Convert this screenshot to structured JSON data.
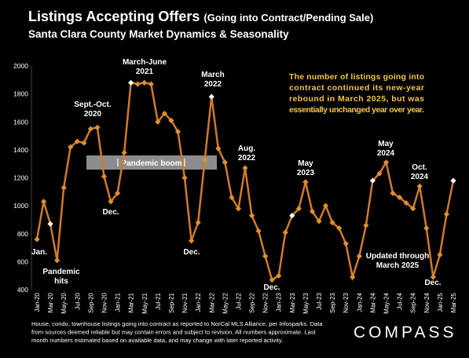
{
  "chart_data": {
    "type": "line",
    "title": "Listings Accepting Offers",
    "title_note": "(Going into Contract/Pending Sale)",
    "subtitle": "Santa Clara County Market Dynamics & Seasonality",
    "categories": [
      "Jan-20",
      null,
      "Mar-20",
      null,
      "May-20",
      null,
      "Jul-20",
      null,
      "Sep-20",
      null,
      "Nov-20",
      null,
      "Jan-21",
      null,
      "Mar-21",
      null,
      "May-21",
      null,
      "Jul-21",
      null,
      "Sep-21",
      null,
      "Nov-21",
      null,
      "Jan-22",
      null,
      "Mar-22",
      null,
      "May-22",
      null,
      "Jul-22",
      null,
      "Sep-22",
      null,
      "Nov-22",
      null,
      "Jan-23",
      null,
      "Mar-23",
      null,
      "May-23",
      null,
      "Jul-23",
      null,
      "Sep-23",
      null,
      "Nov-23",
      null,
      "Jan-24",
      null,
      "Mar-24",
      null,
      "May-24",
      null,
      "Jul-24",
      null,
      "Sep-24",
      null,
      "Nov-24",
      null,
      "Jan-25",
      null,
      "Mar-25"
    ],
    "values": [
      760,
      1030,
      870,
      610,
      1130,
      1420,
      1460,
      1450,
      1550,
      1560,
      1210,
      1030,
      1090,
      1380,
      1880,
      1870,
      1880,
      1870,
      1600,
      1660,
      1610,
      1530,
      1200,
      750,
      880,
      1330,
      1780,
      1410,
      1310,
      1060,
      980,
      1270,
      930,
      820,
      640,
      470,
      500,
      810,
      930,
      980,
      1170,
      960,
      890,
      1000,
      880,
      840,
      730,
      490,
      640,
      860,
      1180,
      1230,
      1310,
      1090,
      1060,
      1020,
      980,
      1140,
      840,
      490,
      650,
      940,
      1180
    ],
    "color": "#cf7a2c",
    "marker_colors": [
      "#e0902c",
      "#e0902c",
      "#ffffff",
      "#e0902c",
      "#e0902c",
      "#e0902c",
      "#e0902c",
      "#e0902c",
      "#e0902c",
      "#e0902c",
      "#e0902c",
      "#e0902c",
      "#e0902c",
      "#e0902c",
      "#ffffff",
      "#e0902c",
      "#e0902c",
      "#e0902c",
      "#e0902c",
      "#e0902c",
      "#e0902c",
      "#e0902c",
      "#e0902c",
      "#e0902c",
      "#e0902c",
      "#e0902c",
      "#ffffff",
      "#e0902c",
      "#e0902c",
      "#e0902c",
      "#e0902c",
      "#e0902c",
      "#e0902c",
      "#e0902c",
      "#e0902c",
      "#e0902c",
      "#e0902c",
      "#e0902c",
      "#ffffff",
      "#e0902c",
      "#e0902c",
      "#e0902c",
      "#e0902c",
      "#e0902c",
      "#e0902c",
      "#e0902c",
      "#e0902c",
      "#e0902c",
      "#e0902c",
      "#e0902c",
      "#ffffff",
      "#e0902c",
      "#e0902c",
      "#e0902c",
      "#e0902c",
      "#e0902c",
      "#e0902c",
      "#e0902c",
      "#e0902c",
      "#e0902c",
      "#e0902c",
      "#e0902c",
      "#ffffff"
    ],
    "ylim": [
      400,
      2000
    ],
    "yticks": [
      400,
      600,
      800,
      1000,
      1200,
      1400,
      1600,
      1800,
      2000
    ],
    "annotations": [
      {
        "lines": [
          "Jan."
        ]
      },
      {
        "lines": [
          "Pandemic",
          "hits"
        ]
      },
      {
        "lines": [
          "Sept.-Oct.",
          "2020"
        ]
      },
      {
        "lines": [
          "March-June",
          "2021"
        ]
      },
      {
        "lines": [
          "Dec."
        ]
      },
      {
        "lines": [
          "Dec."
        ]
      },
      {
        "lines": [
          "March",
          "2022"
        ]
      },
      {
        "lines": [
          "Aug.",
          "2022"
        ]
      },
      {
        "lines": [
          "Dec."
        ]
      },
      {
        "lines": [
          "May",
          "2023"
        ]
      },
      {
        "lines": [
          "May",
          "2024"
        ]
      },
      {
        "lines": [
          "Oct.",
          "2024"
        ]
      },
      {
        "lines": [
          "Updated through",
          "March 2025"
        ]
      },
      {
        "lines": [
          "Dec."
        ]
      }
    ],
    "band_label": "Pandemic boom",
    "note": [
      "The number of listings going into",
      "contract continued its new-year",
      "rebound in March 2025, but was",
      "essentially unchanged year over year."
    ],
    "footnote": [
      "House, condo, townhouse listings going into contract as reported to NorCal MLS Alliance, per Infosparks. Data",
      "from sources deemed reliable but may contain errors and subject to revision. All numbers approximate. Last",
      "month numbers estimated based on available data, and may change with later reported activity."
    ],
    "logo": "COMPASS"
  }
}
